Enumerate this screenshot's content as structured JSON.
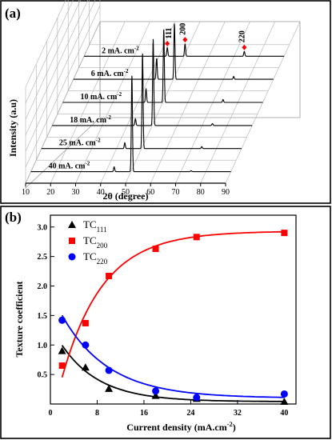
{
  "panel_a": {
    "label": "(a)",
    "chart_data": {
      "type": "line",
      "subtype": "waterfall-3d",
      "xlabel": "2θ (degree)",
      "ylabel": "Intensity (a.u)",
      "xlim": [
        10,
        90
      ],
      "xticks": [
        "10",
        "20",
        "30",
        "40",
        "50",
        "60",
        "70",
        "80",
        "90"
      ],
      "series": [
        {
          "name": "2 mA. cm⁻²",
          "label": "2 mA. cm",
          "sup": "-2",
          "peaks": [
            {
              "x": 43.3,
              "h": 0.09
            },
            {
              "x": 50.4,
              "h": 0.13
            },
            {
              "x": 74.1,
              "h": 0.05
            }
          ]
        },
        {
          "name": "6 mA. cm⁻²",
          "label": "6 mA. cm",
          "sup": "-2",
          "peaks": [
            {
              "x": 43.3,
              "h": 0.22
            },
            {
              "x": 50.4,
              "h": 0.58
            },
            {
              "x": 74.1,
              "h": 0.03
            }
          ]
        },
        {
          "name": "10 mA. cm⁻²",
          "label": "10 mA. cm",
          "sup": "-2",
          "peaks": [
            {
              "x": 43.3,
              "h": 0.14
            },
            {
              "x": 50.4,
              "h": 0.76
            },
            {
              "x": 74.1,
              "h": 0.03
            }
          ]
        },
        {
          "name": "18 mA. cm⁻²",
          "label": "18 mA. cm",
          "sup": "-2",
          "peaks": [
            {
              "x": 43.3,
              "h": 0.07
            },
            {
              "x": 50.4,
              "h": 0.9
            },
            {
              "x": 74.1,
              "h": 0.02
            }
          ]
        },
        {
          "name": "25 mA. cm⁻²",
          "label": "25 mA. cm",
          "sup": "-2",
          "peaks": [
            {
              "x": 43.3,
              "h": 0.06
            },
            {
              "x": 50.4,
              "h": 0.99
            },
            {
              "x": 74.1,
              "h": 0.02
            }
          ]
        },
        {
          "name": "40 mA. cm⁻²",
          "label": "40 mA. cm",
          "sup": "-2",
          "peaks": [
            {
              "x": 43.3,
              "h": 0.05
            },
            {
              "x": 50.4,
              "h": 1.0
            },
            {
              "x": 74.1,
              "h": 0.01
            }
          ]
        }
      ],
      "peak_markers": [
        {
          "label": "111",
          "x": 43.3
        },
        {
          "label": "200",
          "x": 50.4
        },
        {
          "label": "220",
          "x": 74.1
        }
      ]
    }
  },
  "panel_b": {
    "label": "(b)",
    "chart_data": {
      "type": "scatter",
      "xlabel": "Current density (mA.cm",
      "xlabel_sup": "-2",
      "xlabel_end": ")",
      "ylabel": "Texture coefficient",
      "xlim": [
        0,
        42
      ],
      "ylim": [
        0,
        3.2
      ],
      "xticks": [
        0,
        8,
        16,
        24,
        32,
        40
      ],
      "yticks": [
        0.5,
        1.0,
        1.5,
        2.0,
        2.5,
        3.0
      ],
      "ytick_labels": [
        "0.5",
        "1.0",
        "1.5",
        "2.0",
        "2.5",
        "3.0"
      ],
      "legend_position": "top-left",
      "x": [
        2,
        6,
        10,
        18,
        25,
        40
      ],
      "series": [
        {
          "name": "TC111",
          "label": "TC",
          "sub": "111",
          "marker": "triangle",
          "color": "#000000",
          "values": [
            0.9,
            0.62,
            0.26,
            0.14,
            0.09,
            0.04
          ]
        },
        {
          "name": "TC200",
          "label": "TC",
          "sub": "200",
          "marker": "square",
          "color": "#ff0000",
          "values": [
            0.65,
            1.37,
            2.17,
            2.63,
            2.83,
            2.9
          ]
        },
        {
          "name": "TC220",
          "label": "TC",
          "sub": "220",
          "marker": "circle",
          "color": "#0000ff",
          "values": [
            1.42,
            1.0,
            0.57,
            0.22,
            0.11,
            0.17
          ]
        }
      ],
      "fits": [
        {
          "series": "TC111",
          "color": "#000000",
          "model": "y0 + A*exp(-x/t)",
          "y0": 0.04,
          "A": 1.3,
          "t": 6.5
        },
        {
          "series": "TC200",
          "color": "#ff0000",
          "model": "y0 - A*exp(-x/t)",
          "y0": 2.93,
          "A": 3.3,
          "t": 7.0
        },
        {
          "series": "TC220",
          "color": "#0000ff",
          "model": "y0 + A*exp(-x/t)",
          "y0": 0.1,
          "A": 1.8,
          "t": 8.0
        }
      ]
    }
  }
}
